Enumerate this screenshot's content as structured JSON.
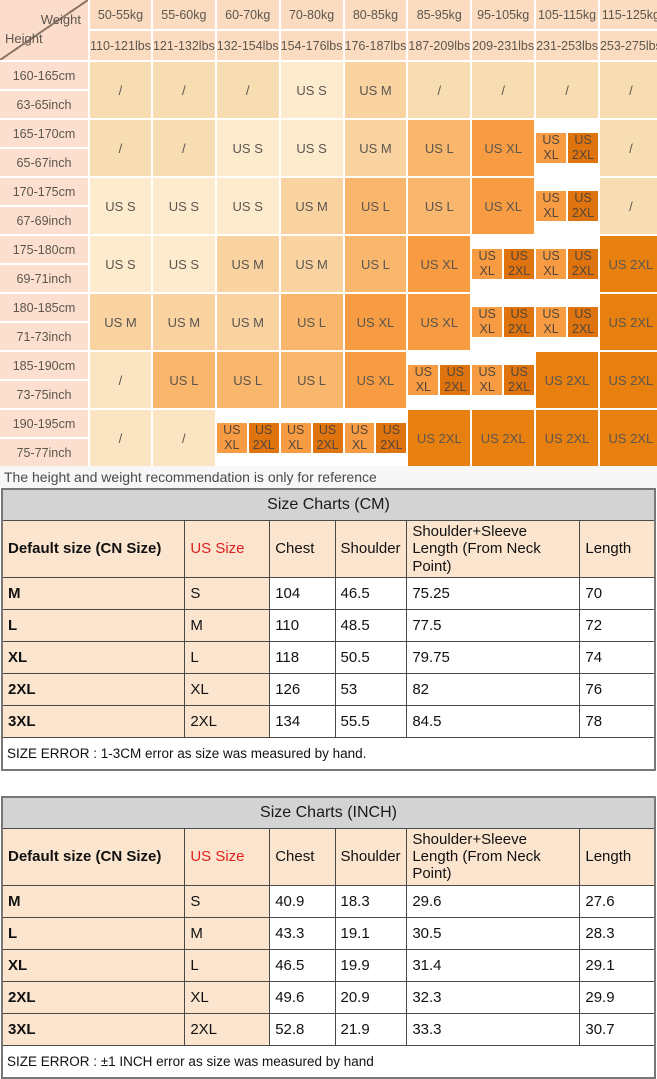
{
  "matrix": {
    "corner": {
      "weight": "Weight",
      "height": "Height"
    },
    "weights_kg": [
      "50-55kg",
      "55-60kg",
      "60-70kg",
      "70-80kg",
      "80-85kg",
      "85-95kg",
      "95-105kg",
      "105-115kg",
      "115-125kg"
    ],
    "weights_lbs": [
      "110-121lbs",
      "121-132lbs",
      "132-154lbs",
      "154-176lbs",
      "176-187lbs",
      "187-209lbs",
      "209-231lbs",
      "231-253lbs",
      "253-275lbs"
    ],
    "rows": [
      {
        "cm": "160-165cm",
        "inch": "63-65inch",
        "slash": "tan",
        "cells": [
          "/",
          "/",
          "/",
          "US S",
          "US M",
          "/",
          "/",
          "/",
          "/"
        ]
      },
      {
        "cm": "165-170cm",
        "inch": "65-67inch",
        "slash": "tan",
        "cells": [
          "/",
          "/",
          "US S",
          "US S",
          "US M",
          "US L",
          "US XL",
          "US XL|US 2XL",
          "/"
        ]
      },
      {
        "cm": "170-175cm",
        "inch": "67-69inch",
        "slash": "tan",
        "cells": [
          "US S",
          "US S",
          "US S",
          "US M",
          "US L",
          "US L",
          "US XL",
          "US XL|US 2XL",
          "/"
        ]
      },
      {
        "cm": "175-180cm",
        "inch": "69-71inch",
        "slash": "tan",
        "cells": [
          "US S",
          "US S",
          "US M",
          "US M",
          "US L",
          "US XL",
          "US XL|US 2XL",
          "US XL|US 2XL",
          "US 2XL"
        ]
      },
      {
        "cm": "180-185cm",
        "inch": "71-73inch",
        "slash": "tan",
        "cells": [
          "US M",
          "US M",
          "US M",
          "US L",
          "US XL",
          "US XL",
          "US XL|US 2XL",
          "US XL|US 2XL",
          "US 2XL"
        ]
      },
      {
        "cm": "185-190cm",
        "inch": "73-75inch",
        "slash": "cream",
        "cells": [
          "/",
          "US L",
          "US L",
          "US L",
          "US XL",
          "US XL|US 2XL",
          "US XL|US 2XL",
          "US 2XL",
          "US 2XL"
        ]
      },
      {
        "cm": "190-195cm",
        "inch": "75-77inch",
        "slash": "cream",
        "cells": [
          "/",
          "/",
          "US XL|US 2XL",
          "US XL|US 2XL",
          "US XL|US 2XL",
          "US 2XL",
          "US 2XL",
          "US 2XL",
          "US 2XL"
        ]
      }
    ],
    "note": "The height and weight recommendation is only for reference",
    "colors": {
      "header_bg": "#fbdcc0",
      "height_bg": "#fcdfce",
      "slash_tan": "#f8dcb2",
      "slash_cream": "#fae4c2",
      "us_s": "#fdebce",
      "us_m": "#fad3a2",
      "us_l": "#f9b66d",
      "us_xl": "#f79c42",
      "us_2xl": "#e8800f"
    }
  },
  "cm_chart": {
    "title": "Size Charts (CM)",
    "headers": [
      "Default size (CN Size)",
      "US Size",
      "Chest",
      "Shoulder",
      "Shoulder+Sleeve Length (From Neck Point)",
      "Length"
    ],
    "rows": [
      [
        "M",
        "S",
        "104",
        "46.5",
        "75.25",
        "70"
      ],
      [
        "L",
        "M",
        "110",
        "48.5",
        "77.5",
        "72"
      ],
      [
        "XL",
        "L",
        "118",
        "50.5",
        "79.75",
        "74"
      ],
      [
        "2XL",
        "XL",
        "126",
        "53",
        "82",
        "76"
      ],
      [
        "3XL",
        "2XL",
        "134",
        "55.5",
        "84.5",
        "78"
      ]
    ],
    "error_note": "SIZE ERROR : 1-3CM error as size was measured by hand."
  },
  "inch_chart": {
    "title": "Size Charts (INCH)",
    "headers": [
      "Default size (CN Size)",
      "US Size",
      "Chest",
      "Shoulder",
      "Shoulder+Sleeve Length (From Neck Point)",
      "Length"
    ],
    "rows": [
      [
        "M",
        "S",
        "40.9",
        "18.3",
        "29.6",
        "27.6"
      ],
      [
        "L",
        "M",
        "43.3",
        "19.1",
        "30.5",
        "28.3"
      ],
      [
        "XL",
        "L",
        "46.5",
        "19.9",
        "31.4",
        "29.1"
      ],
      [
        "2XL",
        "XL",
        "49.6",
        "20.9",
        "32.3",
        "29.9"
      ],
      [
        "3XL",
        "2XL",
        "52.8",
        "21.9",
        "33.3",
        "30.7"
      ]
    ],
    "error_note": "SIZE ERROR : ±1 INCH error as size was measured by hand"
  }
}
